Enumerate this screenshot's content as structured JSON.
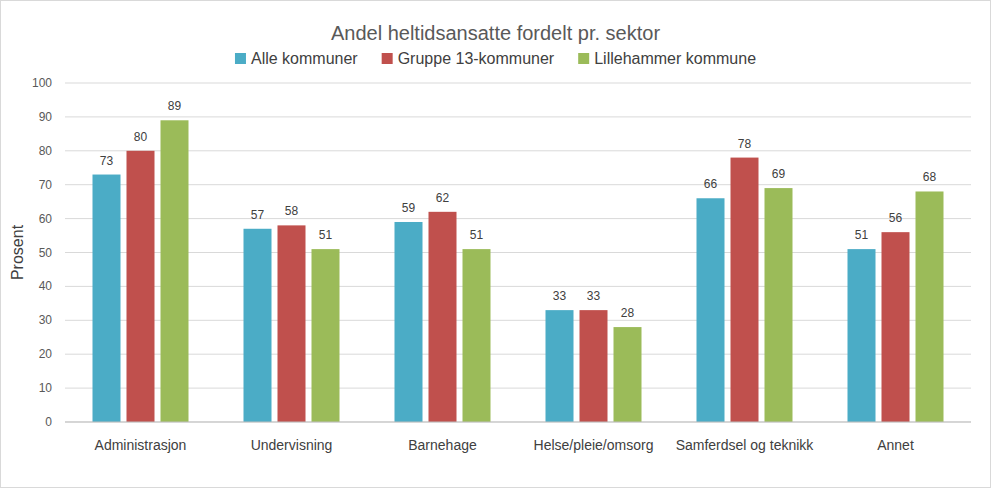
{
  "chart_data": {
    "type": "bar",
    "title": "Andel heltidsansatte fordelt pr. sektor",
    "y_label": "Prosent",
    "categories": [
      "Administrasjon",
      "Undervisning",
      "Barnehage",
      "Helse/pleie/omsorg",
      "Samferdsel og teknikk",
      "Annet"
    ],
    "series": [
      {
        "name": "Alle kommuner",
        "color": "#4bacc6",
        "values": [
          73,
          57,
          59,
          33,
          66,
          51
        ]
      },
      {
        "name": "Gruppe 13-kommuner",
        "color": "#c0504d",
        "values": [
          80,
          58,
          62,
          33,
          78,
          56
        ]
      },
      {
        "name": "Lillehammer kommune",
        "color": "#9bbb59",
        "values": [
          89,
          51,
          51,
          28,
          69,
          68
        ]
      }
    ],
    "ylim": [
      0,
      100
    ],
    "yticks": [
      0,
      10,
      20,
      30,
      40,
      50,
      60,
      70,
      80,
      90,
      100
    ],
    "grid": true,
    "legend": "top",
    "data_labels": true
  }
}
